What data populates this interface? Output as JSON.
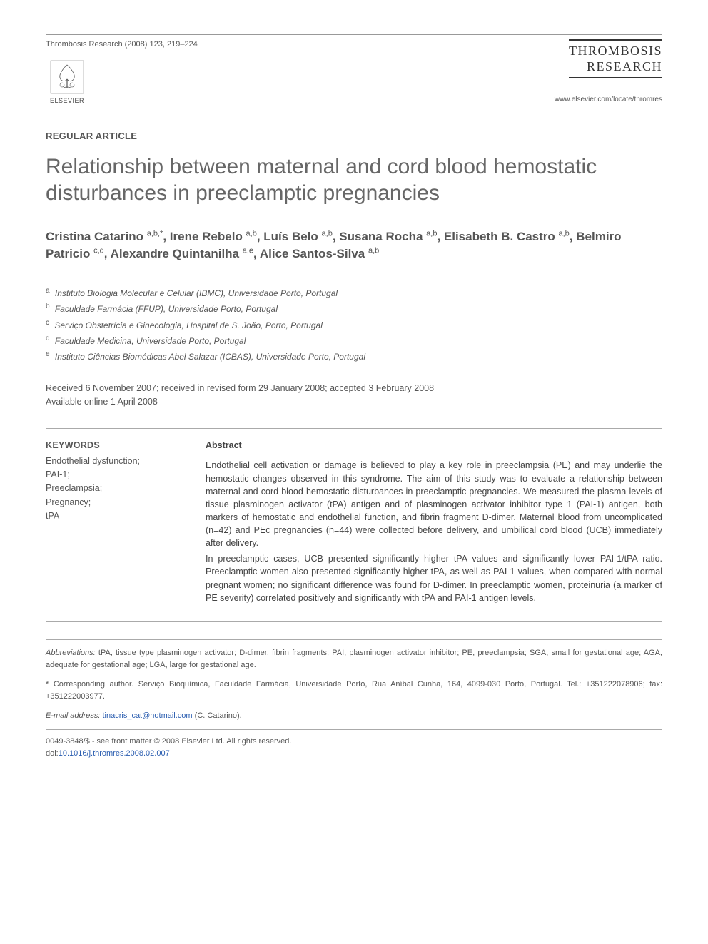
{
  "header": {
    "citation": "Thrombosis Research (2008) 123, 219–224",
    "publisher": "ELSEVIER",
    "journal_title_line1": "THROMBOSIS",
    "journal_title_line2": "RESEARCH",
    "journal_url": "www.elsevier.com/locate/thromres"
  },
  "article": {
    "type": "REGULAR ARTICLE",
    "title": "Relationship between maternal and cord blood hemostatic disturbances in preeclamptic pregnancies",
    "authors_html": "Cristina Catarino <sup>a,b,*</sup>, Irene Rebelo <sup>a,b</sup>, Luís Belo <sup>a,b</sup>, Susana Rocha <sup>a,b</sup>, Elisabeth B. Castro <sup>a,b</sup>, Belmiro Patricio <sup>c,d</sup>, Alexandre Quintanilha <sup>a,e</sup>, Alice Santos-Silva <sup>a,b</sup>"
  },
  "affiliations": [
    {
      "key": "a",
      "text": "Instituto Biologia Molecular e Celular (IBMC), Universidade Porto, Portugal"
    },
    {
      "key": "b",
      "text": "Faculdade Farmácia (FFUP), Universidade Porto, Portugal"
    },
    {
      "key": "c",
      "text": "Serviço Obstetrícia e Ginecologia, Hospital de S. João, Porto, Portugal"
    },
    {
      "key": "d",
      "text": "Faculdade Medicina, Universidade Porto, Portugal"
    },
    {
      "key": "e",
      "text": "Instituto Ciências Biomédicas Abel Salazar (ICBAS), Universidade Porto, Portugal"
    }
  ],
  "dates": {
    "line1": "Received 6 November 2007; received in revised form 29 January 2008; accepted 3 February 2008",
    "line2": "Available online 1 April 2008"
  },
  "keywords": {
    "heading": "KEYWORDS",
    "items": [
      "Endothelial dysfunction;",
      "PAI-1;",
      "Preeclampsia;",
      "Pregnancy;",
      "tPA"
    ]
  },
  "abstract": {
    "heading": "Abstract",
    "paragraphs": [
      "Endothelial cell activation or damage is believed to play a key role in preeclampsia (PE) and may underlie the hemostatic changes observed in this syndrome. The aim of this study was to evaluate a relationship between maternal and cord blood hemostatic disturbances in preeclamptic pregnancies. We measured the plasma levels of tissue plasminogen activator (tPA) antigen and of plasminogen activator inhibitor type 1 (PAI-1) antigen, both markers of hemostatic and endothelial function, and fibrin fragment D-dimer. Maternal blood from uncomplicated (n=42) and PEc pregnancies (n=44) were collected before delivery, and umbilical cord blood (UCB) immediately after delivery.",
      "In preeclamptic cases, UCB presented significantly higher tPA values and significantly lower PAI-1/tPA ratio. Preeclamptic women also presented significantly higher tPA, as well as PAI-1 values, when compared with normal pregnant women; no significant difference was found for D-dimer. In preeclamptic women, proteinuria (a marker of PE severity) correlated positively and significantly with tPA and PAI-1 antigen levels."
    ]
  },
  "footer": {
    "abbreviations_label": "Abbreviations:",
    "abbreviations": "tPA, tissue type plasminogen activator; D-dimer, fibrin fragments; PAI, plasminogen activator inhibitor; PE, preeclampsia; SGA, small for gestational age; AGA, adequate for gestational age; LGA, large for gestational age.",
    "corresponding": "* Corresponding author. Serviço Bioquímica, Faculdade Farmácia, Universidade Porto, Rua Aníbal Cunha, 164, 4099-030 Porto, Portugal. Tel.: +351222078906; fax: +351222003977.",
    "email_label": "E-mail address:",
    "email": "tinacris_cat@hotmail.com",
    "email_attribution": "(C. Catarino).",
    "copyright": "0049-3848/$ - see front matter © 2008 Elsevier Ltd. All rights reserved.",
    "doi_label": "doi:",
    "doi": "10.1016/j.thromres.2008.02.007"
  },
  "colors": {
    "text": "#333333",
    "muted": "#555555",
    "title_gray": "#676767",
    "rule": "#aaaaaa",
    "link": "#2a5db0"
  }
}
